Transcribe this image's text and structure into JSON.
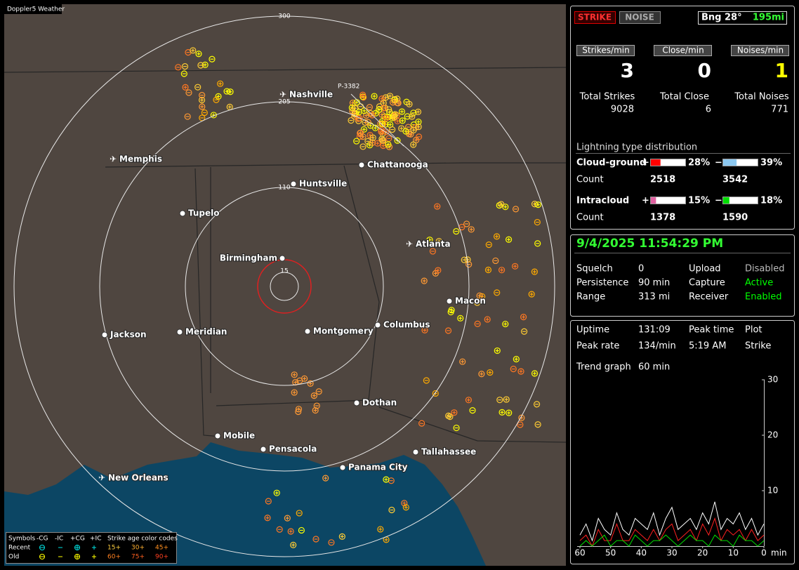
{
  "map": {
    "title": "Doppler5 Weather",
    "ring_labels": [
      "300",
      "205",
      "110",
      "15"
    ],
    "station_label": "P-3382",
    "cities": [
      "Nashville",
      "Memphis",
      "Chattanooga",
      "Huntsville",
      "Tupelo",
      "Birmingham",
      "Atlanta",
      "Macon",
      "Jackson",
      "Meridian",
      "Montgomery",
      "Columbus",
      "Dothan",
      "Mobile",
      "Pensacola",
      "Tallahassee",
      "Panama City",
      "New Orleans"
    ],
    "legend": {
      "symbols": "Symbols",
      "types": [
        "-CG",
        "-IC",
        "+CG",
        "+IC"
      ],
      "age_title": "Strike age color codes",
      "recent": "Recent",
      "old": "Old",
      "recent_ages": [
        "15+",
        "30+",
        "45+"
      ],
      "old_ages": [
        "60+",
        "75+",
        "90+"
      ]
    }
  },
  "panel": {
    "strike": "STRIKE",
    "noise": "NOISE",
    "bearing": "Bng 28°",
    "distance": "195mi",
    "rates": [
      {
        "label": "Strikes/min",
        "value": 3,
        "color": "#ffffff"
      },
      {
        "label": "Close/min",
        "value": 0,
        "color": "#ffffff"
      },
      {
        "label": "Noises/min",
        "value": 1,
        "color": "#ffff00"
      }
    ],
    "totals": [
      {
        "label": "Total Strikes",
        "value": 9028
      },
      {
        "label": "Total Close",
        "value": 6
      },
      {
        "label": "Total Noises",
        "value": 771
      }
    ],
    "distribution": {
      "title": "Lightning type distribution",
      "signs": [
        "+",
        "−"
      ],
      "count_label": "Count",
      "rows": [
        {
          "name": "Cloud-ground",
          "pos": {
            "value": 28,
            "label": "28%"
          },
          "neg": {
            "value": 39,
            "label": "39%"
          },
          "pos_count": 2518,
          "neg_count": 3542,
          "pos_color": "#ff0000",
          "neg_color": "#8cc8f0"
        },
        {
          "name": "Intracloud",
          "pos": {
            "value": 15,
            "label": "15%"
          },
          "neg": {
            "value": 18,
            "label": "18%"
          },
          "pos_count": 1378,
          "neg_count": 1590,
          "pos_color": "#e060a0",
          "neg_color": "#00dd00"
        }
      ]
    },
    "datetime": "9/4/2025 11:54:29 PM",
    "status": [
      {
        "label": "Squelch",
        "value": 0
      },
      {
        "label": "Upload",
        "value": "Disabled",
        "color": "#bbbbbb"
      },
      {
        "label": "Persistence",
        "value": "90 min"
      },
      {
        "label": "Capture",
        "value": "Active",
        "color": "#00ff00"
      },
      {
        "label": "Range",
        "value": "313 mi"
      },
      {
        "label": "Receiver",
        "value": "Enabled",
        "color": "#00ff00"
      }
    ],
    "stats": [
      {
        "label": "Uptime",
        "value": "131:09"
      },
      {
        "label": "Peak time",
        "value": "5:19 AM"
      },
      {
        "label": "Plot",
        "value": ""
      },
      {
        "label": "Peak rate",
        "value": "134/min"
      },
      {
        "label": "Strike"
      }
    ],
    "trend": {
      "label": "Trend graph",
      "window": "60 min",
      "ylim": [
        0,
        30
      ],
      "yticks": [
        10,
        20,
        30
      ],
      "xlim": [
        60,
        0
      ],
      "xticks": [
        60,
        50,
        40,
        30,
        20,
        10,
        0
      ],
      "x_unit": "min",
      "x": [
        60,
        58,
        56,
        54,
        52,
        50,
        48,
        46,
        44,
        42,
        40,
        38,
        36,
        34,
        32,
        30,
        28,
        26,
        24,
        22,
        20,
        18,
        16,
        14,
        12,
        10,
        8,
        6,
        4,
        2,
        0
      ],
      "series": [
        {
          "color": "#ffffff",
          "values": [
            2,
            4,
            1,
            5,
            3,
            2,
            6,
            3,
            2,
            5,
            4,
            3,
            6,
            2,
            5,
            7,
            3,
            4,
            5,
            3,
            6,
            4,
            8,
            3,
            5,
            4,
            6,
            3,
            5,
            2,
            4
          ]
        },
        {
          "color": "#ff2020",
          "values": [
            1,
            2,
            0,
            3,
            1,
            1,
            4,
            1,
            1,
            3,
            2,
            1,
            3,
            1,
            3,
            4,
            1,
            2,
            3,
            1,
            4,
            2,
            5,
            1,
            3,
            2,
            3,
            1,
            3,
            1,
            2
          ]
        },
        {
          "color": "#00dd00",
          "values": [
            0,
            1,
            0,
            1,
            2,
            0,
            1,
            1,
            0,
            2,
            1,
            0,
            1,
            1,
            2,
            1,
            0,
            1,
            2,
            1,
            1,
            0,
            2,
            1,
            1,
            0,
            2,
            1,
            1,
            0,
            1
          ]
        }
      ]
    }
  }
}
